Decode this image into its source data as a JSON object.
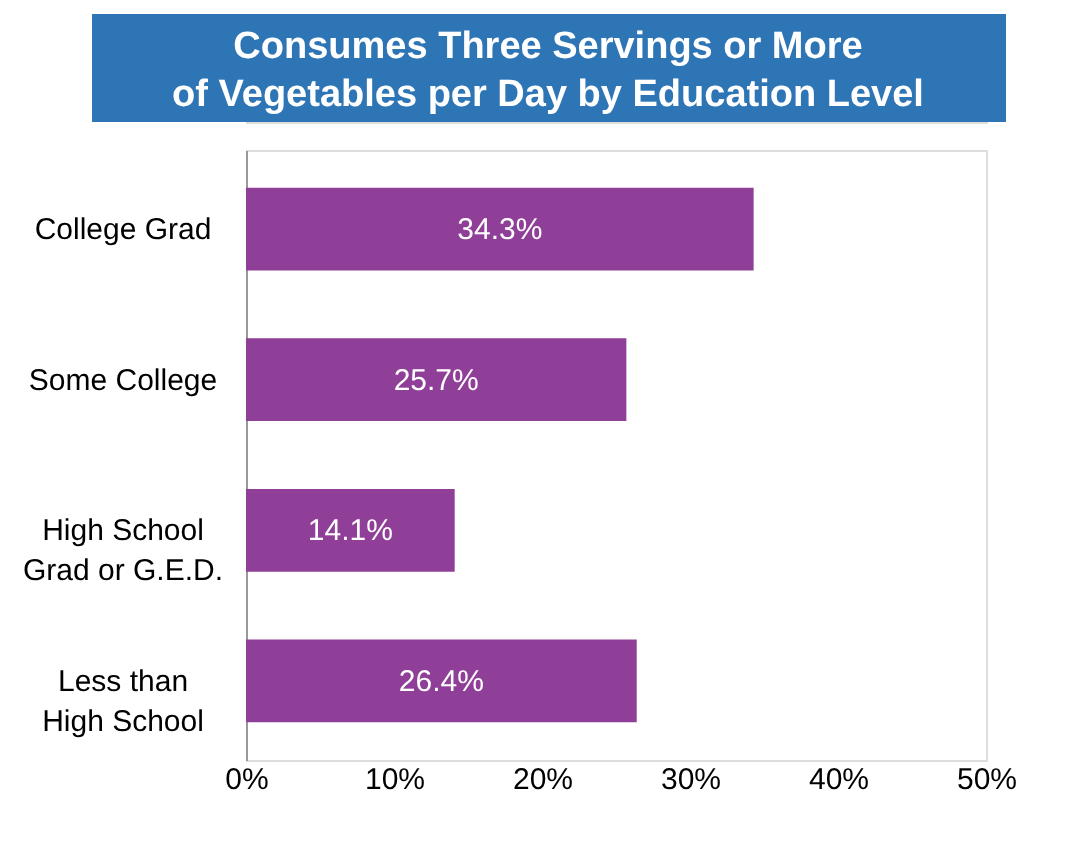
{
  "chart_data": {
    "type": "bar",
    "orientation": "horizontal",
    "title": "Consumes Three Servings or More\nof Vegetables per Day by Education Level",
    "categories": [
      "College Grad",
      "Some College",
      "High School\nGrad or G.E.D.",
      "Less than\nHigh School"
    ],
    "values": [
      34.3,
      25.7,
      14.1,
      26.4
    ],
    "color": "#8f3f97",
    "value_labels": [
      "34.3%",
      "25.7%",
      "14.1%",
      "26.4%"
    ],
    "xlim": [
      0,
      50
    ],
    "xticks": [
      {
        "value": 0,
        "label": "0%"
      },
      {
        "value": 10,
        "label": "10%"
      },
      {
        "value": 20,
        "label": "20%"
      },
      {
        "value": 30,
        "label": "30%"
      },
      {
        "value": 40,
        "label": "40%"
      },
      {
        "value": 50,
        "label": "50%"
      }
    ],
    "grid": false
  }
}
